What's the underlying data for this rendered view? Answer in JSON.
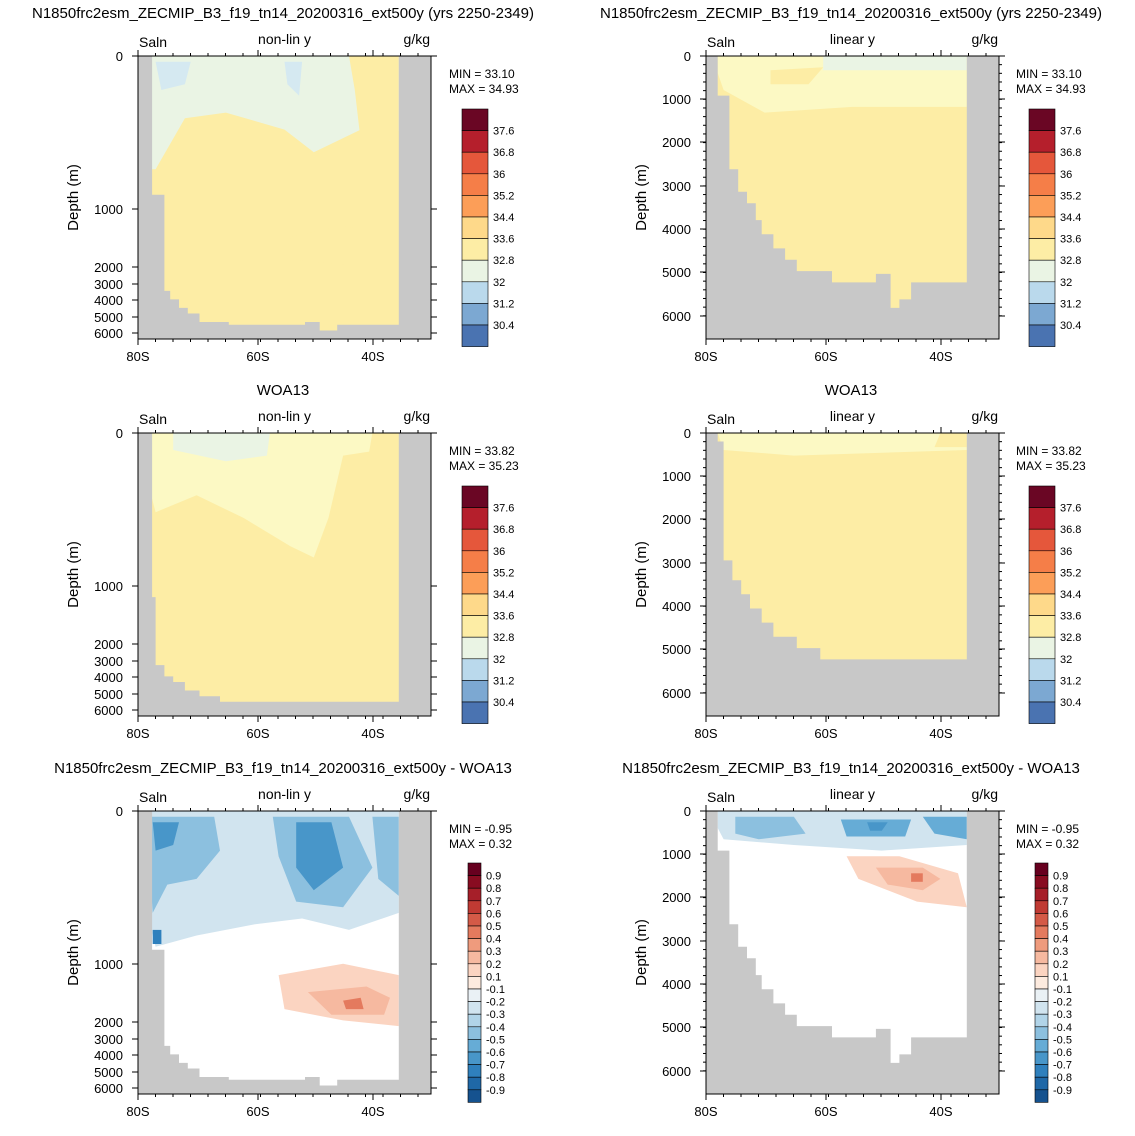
{
  "rows": [
    {
      "title": "N1850frc2esm_ZECMIP_B3_f19_tn14_20200316_ext500y (yrs 2250-2349)"
    },
    {
      "title": "WOA13"
    },
    {
      "title": "N1850frc2esm_ZECMIP_B3_f19_tn14_20200316_ext500y - WOA13"
    }
  ],
  "colors": {
    "land": "#c8c8c8",
    "abs_colorbar": [
      "#30285e",
      "#343d84",
      "#39589f",
      "#4a73b1",
      "#5f8ec3",
      "#7ca8d2",
      "#9ac3e0",
      "#bad9ec",
      "#d5e9f1",
      "#eaf4e4",
      "#fcf9c4",
      "#fdeda5",
      "#fed98a",
      "#fdbd6f",
      "#fc9e58",
      "#f57e48",
      "#e5573b",
      "#d23a2f",
      "#b51f2c",
      "#92112b",
      "#6a0624"
    ],
    "diff_colorbar": [
      "#0e3f78",
      "#15528f",
      "#1f68a7",
      "#2f80bd",
      "#4896c9",
      "#66acd6",
      "#8cc0df",
      "#b1d4e8",
      "#d1e4ef",
      "#eaf1f5",
      "#ffffff",
      "#fdebdf",
      "#fbd4c1",
      "#f6b9a0",
      "#ef9b7d",
      "#e47a5e",
      "#d45a47",
      "#c03a33",
      "#a61f29",
      "#880c21",
      "#67001f"
    ]
  },
  "chart_data": [
    {
      "type": "heatmap",
      "variable": "Saln",
      "scale_label": "non-lin y",
      "units": "g/kg",
      "ylabel": "Depth (m)",
      "y_ticks": [
        "0",
        "1000",
        "2000",
        "3000",
        "4000",
        "5000",
        "6000"
      ],
      "x_ticks": [
        "80S",
        "60S",
        "40S"
      ],
      "min_text": "MIN =  33.10",
      "max_text": "MAX =  34.93",
      "colorbar_labels": [
        "37.6",
        "36.8",
        "36",
        "35.2",
        "34.4",
        "33.6",
        "32.8",
        "32",
        "31.2",
        "30.4"
      ],
      "colorbar": "abs"
    },
    {
      "type": "heatmap",
      "variable": "Saln",
      "scale_label": "linear y",
      "units": "g/kg",
      "ylabel": "Depth (m)",
      "y_ticks": [
        "0",
        "1000",
        "2000",
        "3000",
        "4000",
        "5000",
        "6000"
      ],
      "x_ticks": [
        "80S",
        "60S",
        "40S"
      ],
      "min_text": "MIN =  33.10",
      "max_text": "MAX =  34.93",
      "colorbar_labels": [
        "37.6",
        "36.8",
        "36",
        "35.2",
        "34.4",
        "33.6",
        "32.8",
        "32",
        "31.2",
        "30.4"
      ],
      "colorbar": "abs"
    },
    {
      "type": "heatmap",
      "variable": "Saln",
      "scale_label": "non-lin y",
      "units": "g/kg",
      "ylabel": "Depth (m)",
      "y_ticks": [
        "0",
        "1000",
        "2000",
        "3000",
        "4000",
        "5000",
        "6000"
      ],
      "x_ticks": [
        "80S",
        "60S",
        "40S"
      ],
      "min_text": "MIN =  33.82",
      "max_text": "MAX =  35.23",
      "colorbar_labels": [
        "37.6",
        "36.8",
        "36",
        "35.2",
        "34.4",
        "33.6",
        "32.8",
        "32",
        "31.2",
        "30.4"
      ],
      "colorbar": "abs"
    },
    {
      "type": "heatmap",
      "variable": "Saln",
      "scale_label": "linear y",
      "units": "g/kg",
      "ylabel": "Depth (m)",
      "y_ticks": [
        "0",
        "1000",
        "2000",
        "3000",
        "4000",
        "5000",
        "6000"
      ],
      "x_ticks": [
        "80S",
        "60S",
        "40S"
      ],
      "min_text": "MIN =  33.82",
      "max_text": "MAX =  35.23",
      "colorbar_labels": [
        "37.6",
        "36.8",
        "36",
        "35.2",
        "34.4",
        "33.6",
        "32.8",
        "32",
        "31.2",
        "30.4"
      ],
      "colorbar": "abs"
    },
    {
      "type": "heatmap",
      "variable": "Saln",
      "scale_label": "non-lin y",
      "units": "g/kg",
      "ylabel": "Depth (m)",
      "y_ticks": [
        "0",
        "1000",
        "2000",
        "3000",
        "4000",
        "5000",
        "6000"
      ],
      "x_ticks": [
        "80S",
        "60S",
        "40S"
      ],
      "min_text": "MIN =  -0.95",
      "max_text": "MAX =   0.32",
      "colorbar_labels": [
        "0.9",
        "0.8",
        "0.7",
        "0.6",
        "0.5",
        "0.4",
        "0.3",
        "0.2",
        "0.1",
        "-0.1",
        "-0.2",
        "-0.3",
        "-0.4",
        "-0.5",
        "-0.6",
        "-0.7",
        "-0.8",
        "-0.9"
      ],
      "colorbar": "diff"
    },
    {
      "type": "heatmap",
      "variable": "Saln",
      "scale_label": "linear y",
      "units": "g/kg",
      "ylabel": "Depth (m)",
      "y_ticks": [
        "0",
        "1000",
        "2000",
        "3000",
        "4000",
        "5000",
        "6000"
      ],
      "x_ticks": [
        "80S",
        "60S",
        "40S"
      ],
      "min_text": "MIN =  -0.95",
      "max_text": "MAX =   0.32",
      "colorbar_labels": [
        "0.9",
        "0.8",
        "0.7",
        "0.6",
        "0.5",
        "0.4",
        "0.3",
        "0.2",
        "0.1",
        "-0.1",
        "-0.2",
        "-0.3",
        "-0.4",
        "-0.5",
        "-0.6",
        "-0.7",
        "-0.8",
        "-0.9"
      ],
      "colorbar": "diff"
    }
  ]
}
